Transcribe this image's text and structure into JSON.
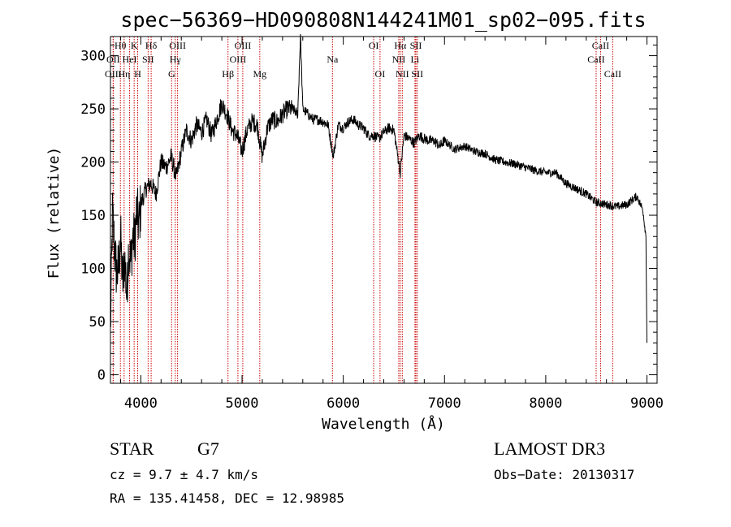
{
  "chart_data": {
    "type": "line",
    "title": "spec−56369−HD090808N144241M01_sp02−095.fits",
    "xlabel": "Wavelength (Å)",
    "ylabel": "Flux (relative)",
    "xlim": [
      3700,
      9100
    ],
    "ylim": [
      -8,
      318
    ],
    "xticks": [
      4000,
      5000,
      6000,
      7000,
      8000,
      9000
    ],
    "yticks": [
      0,
      50,
      100,
      150,
      200,
      250,
      300
    ],
    "spectrum": {
      "name": "flux",
      "x": [
        3700,
        3720,
        3740,
        3760,
        3780,
        3800,
        3820,
        3840,
        3860,
        3880,
        3900,
        3920,
        3940,
        3960,
        3980,
        4000,
        4050,
        4100,
        4150,
        4200,
        4250,
        4300,
        4350,
        4400,
        4450,
        4500,
        4550,
        4600,
        4650,
        4700,
        4750,
        4800,
        4850,
        4900,
        4950,
        5000,
        5050,
        5100,
        5150,
        5200,
        5250,
        5300,
        5350,
        5400,
        5450,
        5500,
        5550,
        5577,
        5600,
        5650,
        5700,
        5750,
        5800,
        5850,
        5900,
        5950,
        6000,
        6050,
        6100,
        6150,
        6200,
        6250,
        6300,
        6350,
        6400,
        6450,
        6500,
        6563,
        6600,
        6650,
        6700,
        6750,
        6800,
        6850,
        6900,
        6950,
        7000,
        7100,
        7200,
        7300,
        7400,
        7500,
        7600,
        7700,
        7800,
        7900,
        8000,
        8100,
        8200,
        8300,
        8400,
        8500,
        8600,
        8700,
        8800,
        8900,
        8960,
        8990,
        9000
      ],
      "y": [
        40,
        150,
        120,
        95,
        100,
        130,
        85,
        110,
        75,
        120,
        105,
        130,
        125,
        155,
        140,
        160,
        175,
        180,
        170,
        200,
        195,
        205,
        185,
        210,
        230,
        220,
        235,
        228,
        240,
        225,
        240,
        255,
        245,
        230,
        225,
        210,
        230,
        238,
        235,
        205,
        232,
        240,
        238,
        245,
        250,
        250,
        245,
        320,
        250,
        245,
        240,
        240,
        238,
        235,
        205,
        235,
        232,
        238,
        240,
        235,
        232,
        225,
        225,
        222,
        228,
        232,
        230,
        190,
        225,
        222,
        218,
        225,
        222,
        220,
        220,
        215,
        220,
        212,
        215,
        210,
        208,
        202,
        200,
        198,
        195,
        192,
        190,
        190,
        180,
        175,
        170,
        162,
        160,
        158,
        160,
        168,
        155,
        130,
        30
      ]
    },
    "lines": [
      {
        "label": "Hθ",
        "wavelength": 3798,
        "row": 0
      },
      {
        "label": "OII",
        "wavelength": 3727,
        "row": 1
      },
      {
        "label": "OIII",
        "wavelength": 3727,
        "row": 2
      },
      {
        "label": "Hη",
        "wavelength": 3835,
        "row": 2
      },
      {
        "label": "HeI",
        "wavelength": 3889,
        "row": 1
      },
      {
        "label": "K",
        "wavelength": 3934,
        "row": 0
      },
      {
        "label": "H",
        "wavelength": 3969,
        "row": 2
      },
      {
        "label": "SII",
        "wavelength": 4072,
        "row": 1
      },
      {
        "label": "Hδ",
        "wavelength": 4102,
        "row": 0
      },
      {
        "label": "OIII",
        "wavelength": 4363,
        "row": 0
      },
      {
        "label": "Hγ",
        "wavelength": 4340,
        "row": 1
      },
      {
        "label": "G",
        "wavelength": 4304,
        "row": 2
      },
      {
        "label": "Hβ",
        "wavelength": 4861,
        "row": 2
      },
      {
        "label": "OIII",
        "wavelength": 5007,
        "row": 0
      },
      {
        "label": "OIII",
        "wavelength": 4959,
        "row": 1
      },
      {
        "label": "Mg",
        "wavelength": 5175,
        "row": 2
      },
      {
        "label": "Na",
        "wavelength": 5893,
        "row": 1
      },
      {
        "label": "OI",
        "wavelength": 6300,
        "row": 0
      },
      {
        "label": "OI",
        "wavelength": 6363,
        "row": 2
      },
      {
        "label": "Hα",
        "wavelength": 6563,
        "row": 0
      },
      {
        "label": "NII",
        "wavelength": 6548,
        "row": 1
      },
      {
        "label": "NII",
        "wavelength": 6583,
        "row": 2
      },
      {
        "label": "SII",
        "wavelength": 6717,
        "row": 0
      },
      {
        "label": "Li",
        "wavelength": 6708,
        "row": 1
      },
      {
        "label": "SII",
        "wavelength": 6731,
        "row": 2
      },
      {
        "label": "CaII",
        "wavelength": 8542,
        "row": 0
      },
      {
        "label": "CaII",
        "wavelength": 8498,
        "row": 1
      },
      {
        "label": "CaII",
        "wavelength": 8662,
        "row": 2
      }
    ]
  },
  "info": {
    "object_type": "STAR",
    "subclass": "G7",
    "survey": "LAMOST DR3",
    "cz": "cz = 9.7 ± 4.7 km/s",
    "obs_date": "Obs−Date: 20130317",
    "coords": "RA = 135.41458, DEC =  12.98985"
  },
  "colors": {
    "spectrum": "#000000",
    "line_marker": "#cc0000",
    "axis": "#000000"
  }
}
